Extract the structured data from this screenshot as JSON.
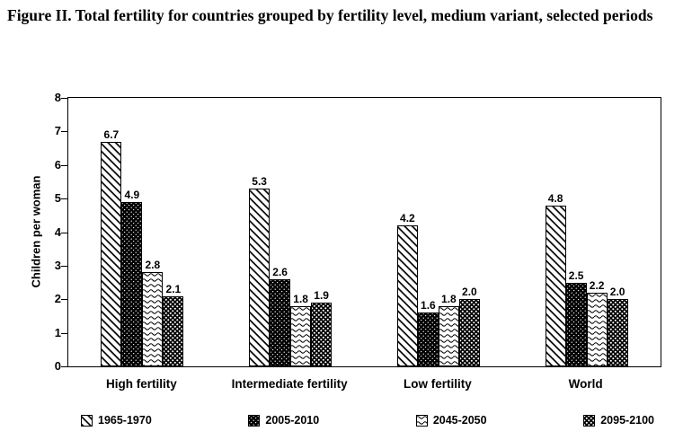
{
  "title": "Figure II.  Total fertility for countries grouped by fertility level, medium variant, selected periods",
  "chart_data": {
    "type": "bar",
    "categories": [
      "High fertility",
      "Intermediate fertility",
      "Low fertility",
      "World"
    ],
    "series": [
      {
        "name": "1965-1970",
        "pattern": "diagonal-hatch",
        "values": [
          6.7,
          5.3,
          4.2,
          4.8
        ]
      },
      {
        "name": "2005-2010",
        "pattern": "black-speckle",
        "values": [
          4.9,
          2.6,
          1.6,
          2.5
        ]
      },
      {
        "name": "2045-2050",
        "pattern": "wave",
        "values": [
          2.8,
          1.8,
          1.8,
          2.2
        ]
      },
      {
        "name": "2095-2100",
        "pattern": "checker-dot",
        "values": [
          2.1,
          1.9,
          2.0,
          2.0
        ]
      }
    ],
    "xlabel": "",
    "ylabel": "Children per woman",
    "ylim": [
      0,
      8
    ],
    "yticks": [
      0,
      1,
      2,
      3,
      4,
      5,
      6,
      7,
      8
    ],
    "grid": false,
    "legend_position": "bottom",
    "value_labels": true,
    "colors": {
      "foreground": "#000000",
      "background": "#ffffff"
    }
  }
}
